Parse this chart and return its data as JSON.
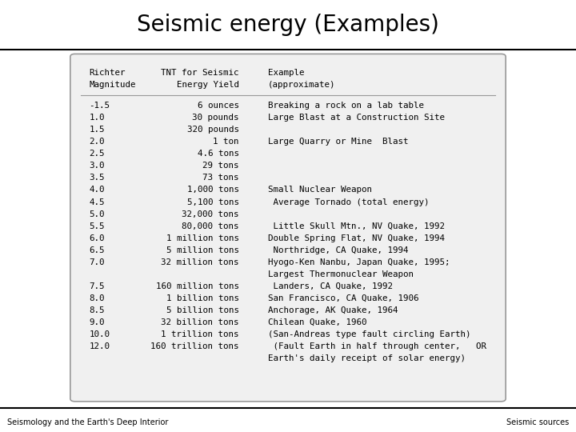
{
  "title": "Seismic energy (Examples)",
  "title_fontsize": 20,
  "title_fontweight": "normal",
  "bg_color": "#ffffff",
  "footer_left": "Seismology and the Earth's Deep Interior",
  "footer_right": "Seismic sources",
  "rows": [
    [
      "-1.5",
      "6 ounces",
      "Breaking a rock on a lab table"
    ],
    [
      "1.0",
      "30 pounds",
      "Large Blast at a Construction Site"
    ],
    [
      "1.5",
      "320 pounds",
      ""
    ],
    [
      "2.0",
      "1 ton",
      "Large Quarry or Mine  Blast"
    ],
    [
      "2.5",
      "4.6 tons",
      ""
    ],
    [
      "3.0",
      "29 tons",
      ""
    ],
    [
      "3.5",
      "73 tons",
      ""
    ],
    [
      "4.0",
      "1,000 tons",
      "Small Nuclear Weapon"
    ],
    [
      "4.5",
      "5,100 tons",
      " Average Tornado (total energy)"
    ],
    [
      "5.0",
      "32,000 tons",
      ""
    ],
    [
      "5.5",
      "80,000 tons",
      " Little Skull Mtn., NV Quake, 1992"
    ],
    [
      "6.0",
      "1 million tons",
      "Double Spring Flat, NV Quake, 1994"
    ],
    [
      "6.5",
      "5 million tons",
      " Northridge, CA Quake, 1994"
    ],
    [
      "7.0",
      "32 million tons",
      "Hyogo-Ken Nanbu, Japan Quake, 1995;"
    ],
    [
      "",
      "",
      "Largest Thermonuclear Weapon"
    ],
    [
      "7.5",
      "160 million tons",
      " Landers, CA Quake, 1992"
    ],
    [
      "8.0",
      "1 billion tons",
      "San Francisco, CA Quake, 1906"
    ],
    [
      "8.5",
      "5 billion tons",
      "Anchorage, AK Quake, 1964"
    ],
    [
      "9.0",
      "32 billion tons",
      "Chilean Quake, 1960"
    ],
    [
      "10.0",
      "1 trillion tons",
      "(San-Andreas type fault circling Earth)"
    ],
    [
      "12.0",
      "160 trillion tons",
      " (Fault Earth in half through center,   OR"
    ],
    [
      "",
      "",
      "Earth's daily receipt of solar energy)"
    ]
  ],
  "font_size": 7.8,
  "mono_font": "monospace",
  "title_bar_color": "#e0e0e0",
  "box_face_color": "#f0f0f0",
  "box_edge_color": "#999999",
  "footer_font_size": 7.0
}
